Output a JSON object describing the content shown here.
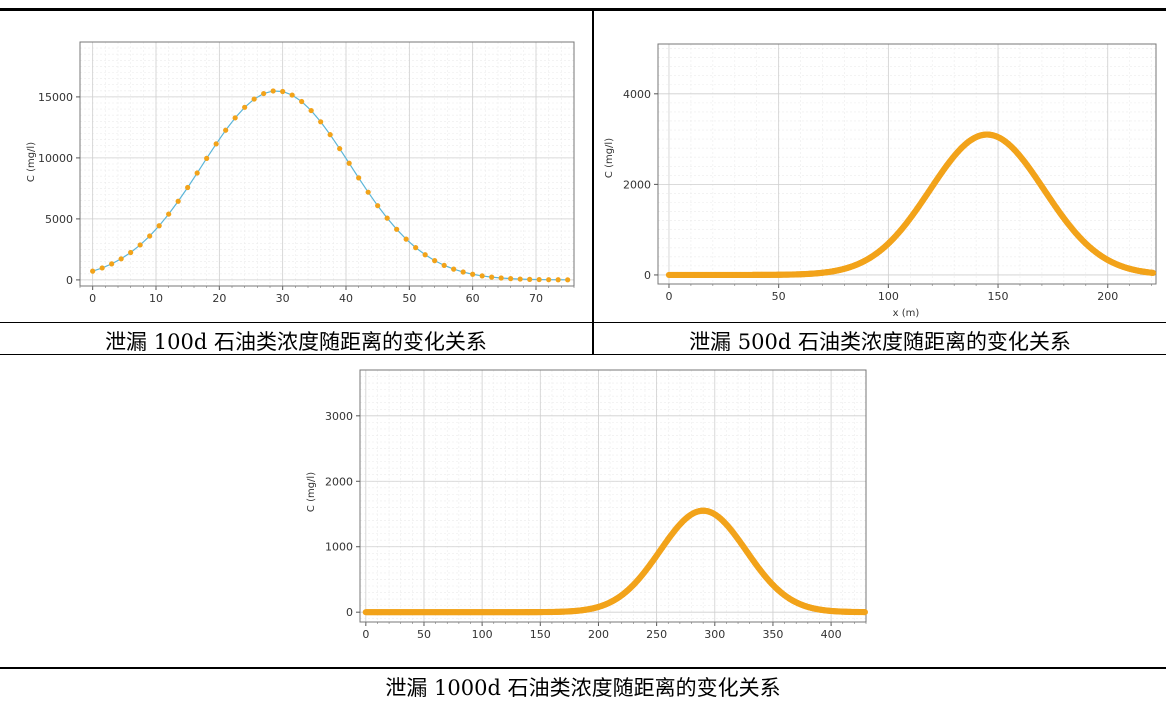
{
  "chart_data": [
    {
      "type": "scatter",
      "caption": "泄漏 100d 石油类浓度随距离的变化关系",
      "xlabel": "",
      "ylabel": "C (mg/l)",
      "xlim": [
        -2,
        76
      ],
      "ylim": [
        -500,
        19500
      ],
      "xticks": [
        0,
        10,
        20,
        30,
        40,
        50,
        60,
        70
      ],
      "yticks": [
        0,
        5000,
        10000,
        15000
      ],
      "grid": true,
      "line_color": "#5bb5d8",
      "marker_color": "#f2a31a",
      "curve": {
        "peak_x": 29,
        "peak_y": 15500,
        "sigma": 11.7
      },
      "x": [
        0,
        1.5,
        3,
        4.5,
        6,
        7.5,
        9,
        10.5,
        12,
        13.5,
        15,
        16.5,
        18,
        19.5,
        21,
        22.5,
        24,
        25.5,
        27,
        28.5,
        30,
        31.5,
        33,
        34.5,
        36,
        37.5,
        39,
        40.5,
        42,
        43.5,
        45,
        46.5,
        48,
        49.5,
        51,
        52.5,
        54,
        55.5,
        57,
        58.5,
        60,
        61.5,
        63,
        64.5,
        66,
        67.5,
        69,
        70.5,
        72,
        73.5,
        75
      ]
    },
    {
      "type": "scatter",
      "caption": "泄漏 500d 石油类浓度随距离的变化关系",
      "xlabel": "x (m)",
      "ylabel": "C (mg/l)",
      "xlim": [
        -5,
        222
      ],
      "ylim": [
        -200,
        5100
      ],
      "xticks": [
        0,
        50,
        100,
        150,
        200
      ],
      "yticks": [
        0,
        2000,
        4000
      ],
      "grid": true,
      "marker_color": "#f2a31a",
      "curve": {
        "peak_x": 145,
        "peak_y": 3100,
        "sigma": 26
      }
    },
    {
      "type": "scatter",
      "caption": "泄漏 1000d 石油类浓度随距离的变化关系",
      "xlabel": "",
      "ylabel": "C (mg/l)",
      "xlim": [
        -5,
        430
      ],
      "ylim": [
        -150,
        3700
      ],
      "xticks": [
        0,
        50,
        100,
        150,
        200,
        250,
        300,
        350,
        400
      ],
      "yticks": [
        0,
        1000,
        2000,
        3000
      ],
      "grid": true,
      "marker_color": "#f2a31a",
      "curve": {
        "peak_x": 290,
        "peak_y": 1550,
        "sigma": 37
      }
    }
  ]
}
